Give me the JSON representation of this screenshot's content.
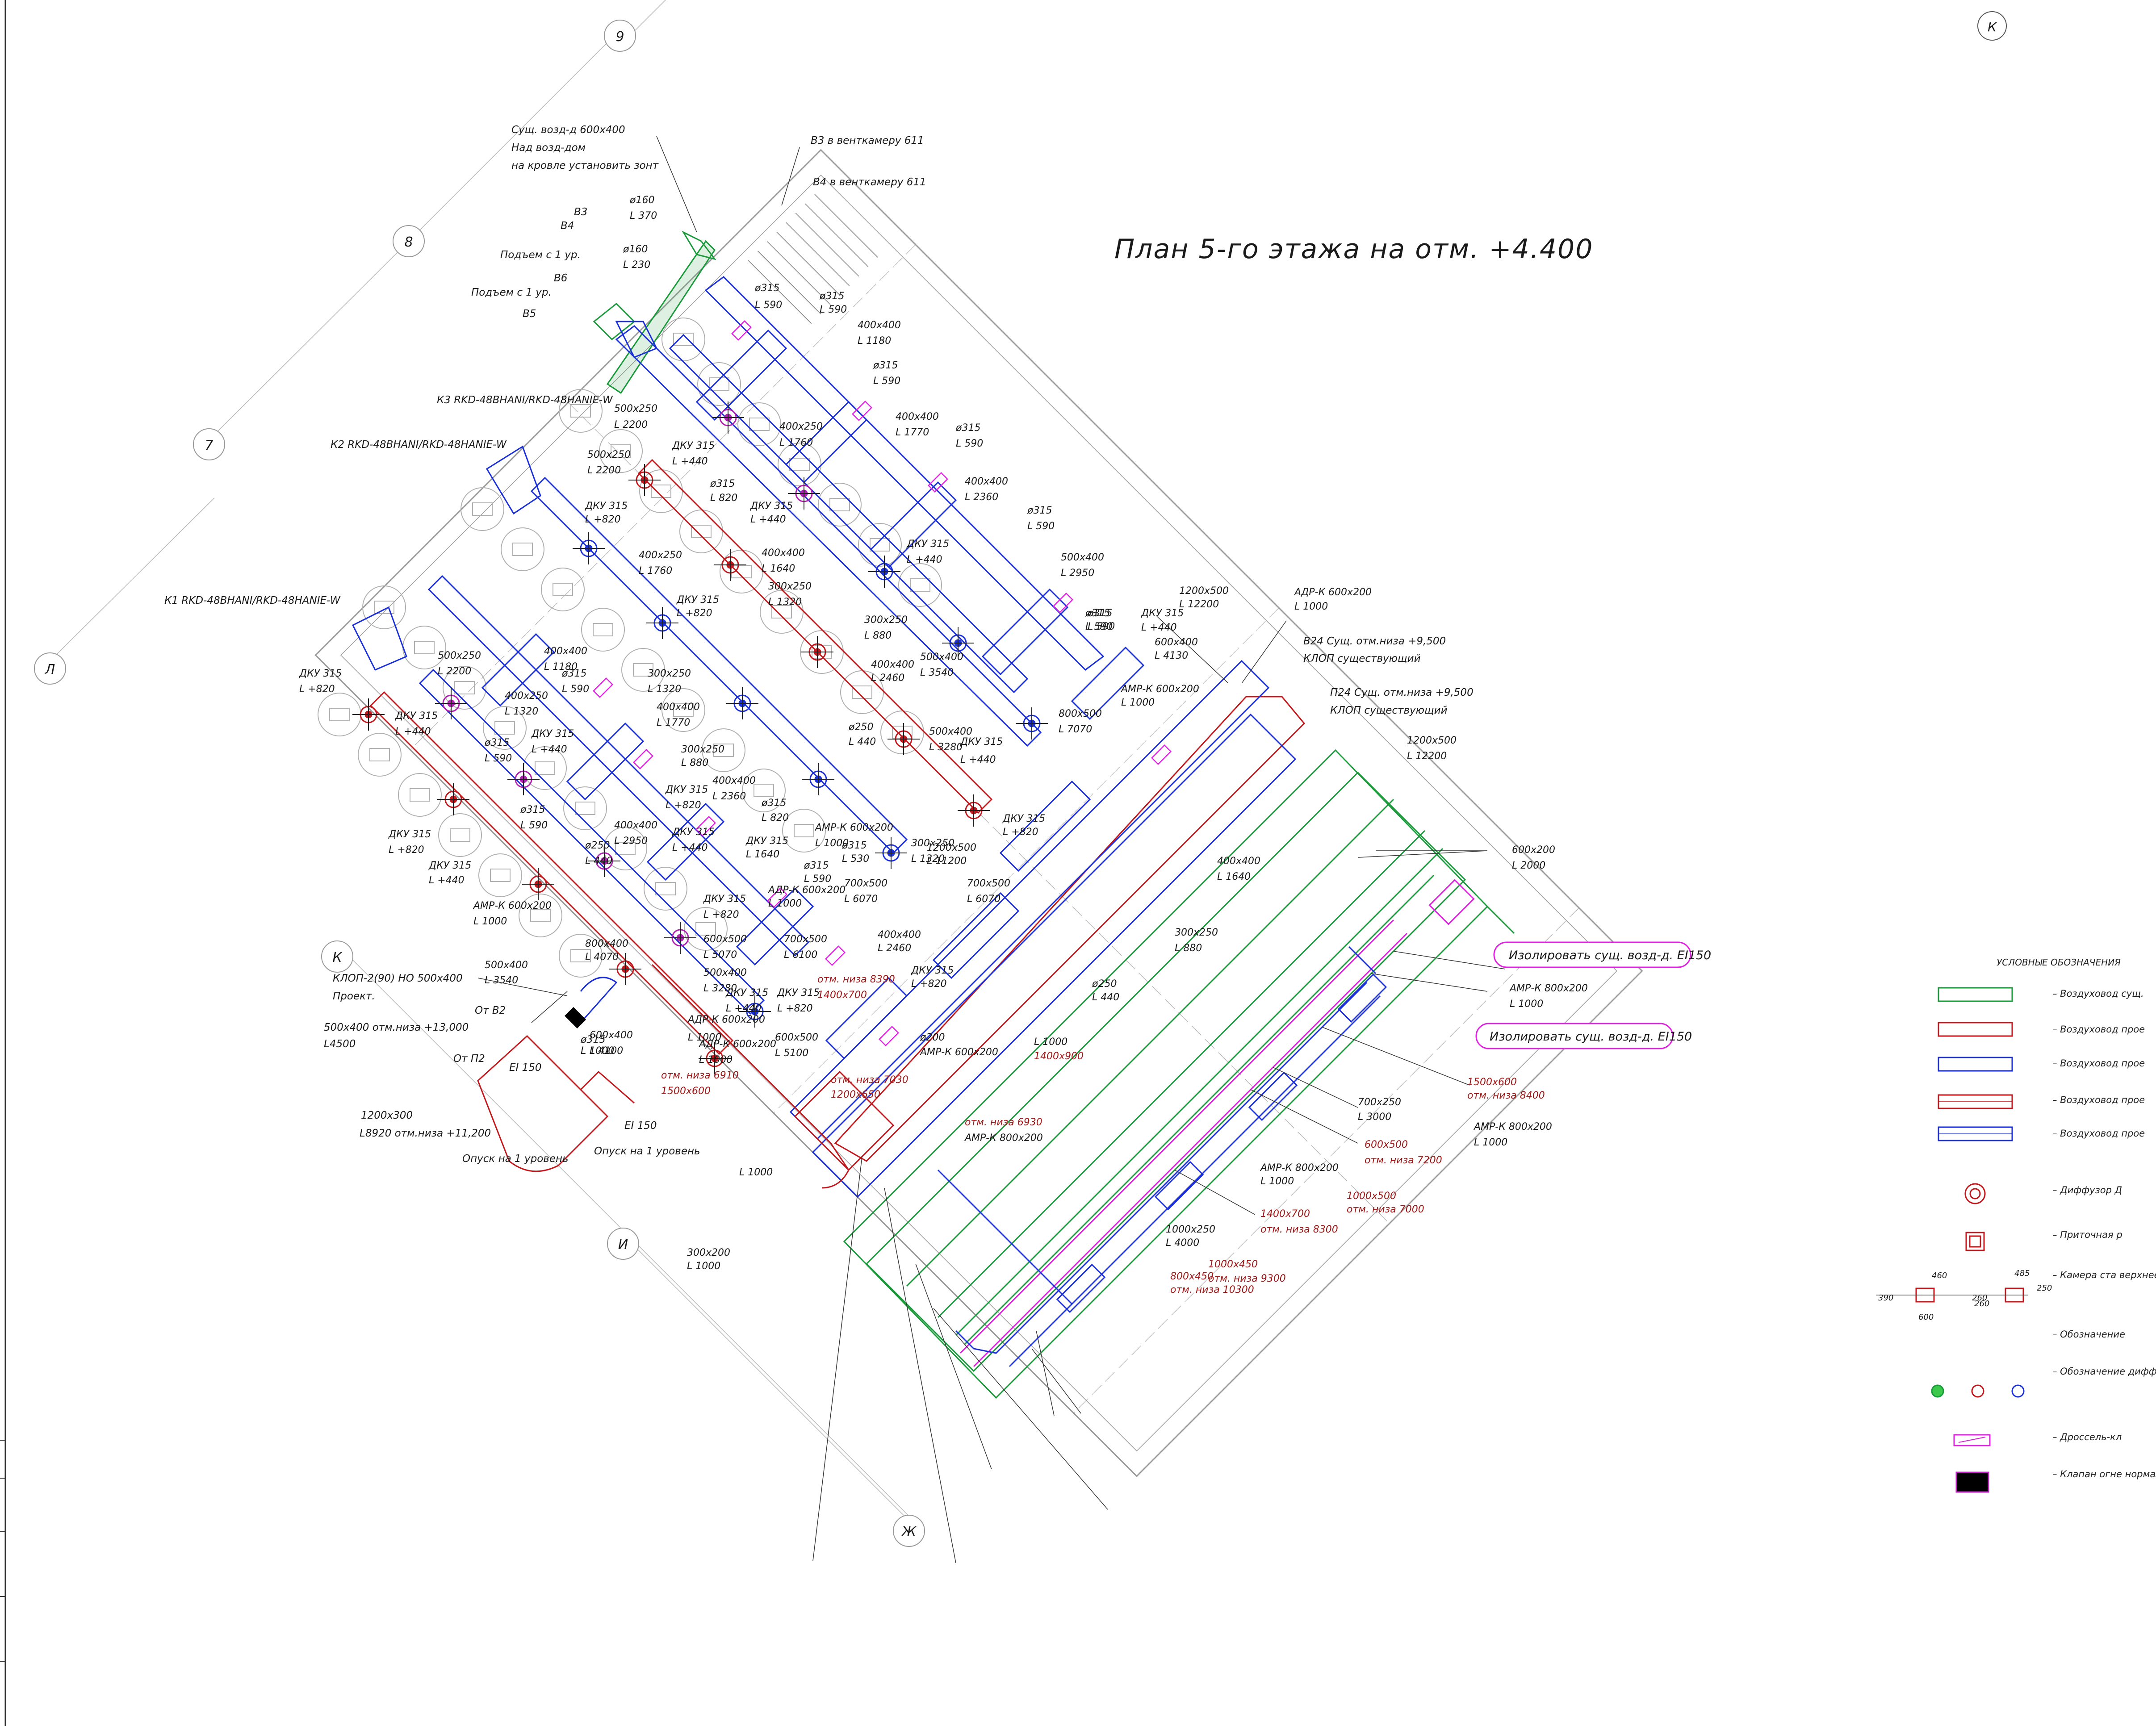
{
  "title": "План 5-го этажа на отм. +4.400",
  "axes": [
    "9",
    "8",
    "7",
    "Л",
    "К",
    "И",
    "Ж",
    "К"
  ],
  "notes": {
    "exhaust_top": [
      "Сущ. возд-д 600х400",
      "Над возд-дом",
      "на кровле установить зонт"
    ],
    "v3": "В3 в венткамеру 611",
    "v4": "В4 в венткамеру 611",
    "b3": "В3",
    "b4": "В4",
    "b5": "В5",
    "b6": "В6",
    "rise1": "Подъем с 1 ур.",
    "rise2": "Подъем с 1 ур.",
    "k3": "К3 RKD-48BHANI/RKD-48HANIE-W",
    "k2": "К2 RKD-48BHANI/RKD-48HANIE-W",
    "k1": "К1 RKD-48BHANI/RKD-48HANIE-W",
    "v24": "В24 Сущ. отм.низа +9,500",
    "v24b": "КЛОП существующий",
    "p24": "П24 Сущ. отм.низа +9,500",
    "p24b": "КЛОП существующий",
    "klop": "КЛОП-2(90) НО 500х400",
    "klop2": "Проект.",
    "ot_v2": "От В2",
    "ot_p2": "От П2",
    "d500": "500х400 отм.низа +13,000",
    "d500b": "L4500",
    "d1200": "1200х300",
    "d1200b": "L8920 отм.низа +11,200",
    "down1": "Опуск на 1 уровень",
    "down2": "Опуск на 1 уровень",
    "ei1": "EI 150",
    "ei2": "EI 150",
    "iso1": "Изолировать сущ. возд-д. EI150",
    "iso2": "Изолировать сущ. возд-д. EI150"
  },
  "dims": [
    "ø160",
    "L 370",
    "ø160",
    "L 230",
    "ø315",
    "L 590",
    "ø315",
    "L 590",
    "400х400",
    "L 1180",
    "ø315",
    "L 590",
    "500х250",
    "L 2200",
    "400х250",
    "L 1760",
    "400х400",
    "L 1770",
    "ø315",
    "L 590",
    "ДКУ 315",
    "L +440",
    "500х250",
    "L 2200",
    "ø315",
    "L 820",
    "400х400",
    "L 2360",
    "ø315",
    "L 590",
    "ДКУ 315",
    "L +820",
    "ДКУ 315",
    "L +440",
    "400х400",
    "L 1640",
    "300х250",
    "L 1320",
    "500х400",
    "L 2950",
    "ø315",
    "L 590",
    "ДКУ 315",
    "L +440",
    "400х250",
    "L 1760",
    "ДКУ 315",
    "L +820",
    "300х250",
    "L 880",
    "1200х500",
    "L 12200",
    "АДР-К 600х200",
    "L 1000",
    "ø315",
    "L 590",
    "ДКУ 315",
    "L +440",
    "400х400",
    "L 2460",
    "600х400",
    "L 4130",
    "500х400",
    "L 3540",
    "АМР-К 600х200",
    "L 1000",
    "800х500",
    "L 7070",
    "1200х500",
    "L 12200",
    "ДКУ 315",
    "L +820",
    "500х250",
    "L 2200",
    "ДКУ 315",
    "L +440",
    "400х400",
    "L 1180",
    "ø315",
    "L 590",
    "300х250",
    "L 1320",
    "400х400",
    "L 1770",
    "400х250",
    "L 1320",
    "ø315",
    "L 590",
    "ДКУ 315",
    "L +440",
    "300х250",
    "L 880",
    "400х400",
    "L 2360",
    "500х400",
    "L 3280",
    "ø250",
    "L 440",
    "ДКУ 315",
    "L +440",
    "ДКУ 315",
    "L +820",
    "ø315",
    "L 820",
    "ДКУ 315",
    "L +820",
    "ø315",
    "L 590",
    "400х400",
    "L 2950",
    "ø250",
    "L 440",
    "АМР-К 600х200",
    "L 1000",
    "ДКУ 315",
    "L +820",
    "1200х500",
    "L 11200",
    "300х250",
    "L 1320",
    "400х400",
    "L 1640",
    "ДКУ 315",
    "L 1640",
    "ø315",
    "L 590",
    "ДКУ 315",
    "L +440",
    "ø315",
    "L 530",
    "700х500",
    "L 6070",
    "700х500",
    "L 6070",
    "АДР-К 600х200",
    "L 1000",
    "ДКУ 315",
    "L +820",
    "300х250",
    "L 880",
    "ДКУ 315",
    "L +440",
    "АМР-К 600х200",
    "L 1000",
    "600х500",
    "L 5070",
    "700х500",
    "L 6100",
    "400х400",
    "L 2460",
    "ДКУ 315",
    "L +820",
    "ø250",
    "L 440",
    "500х400",
    "L 3540",
    "800х400",
    "L 4070",
    "500х400",
    "L 3280",
    "ДКУ 315",
    "L +440",
    "600х400",
    "L 4100",
    "ø315",
    "L 1000",
    "АДР-К 600х200",
    "L 1000",
    "АДР-К 600х200",
    "L 1000",
    "ДКУ 315",
    "L +820",
    "600х500",
    "L 5100",
    "ø200",
    "АМР-К 600х200",
    "L 1000",
    "1400х900",
    "отм. низа 7030",
    "1200х650",
    "отм. низа 8390",
    "1400х700",
    "отм. низа 6910",
    "1500х600",
    "отм. низа 6930",
    "АМР-К 800х200",
    "L 1000",
    "300х200",
    "L 1000",
    "600х200",
    "L 2000",
    "АМР-К 800х200",
    "L 1000",
    "1500х600",
    "отм. низа 8400",
    "700х250",
    "L 3000",
    "АМР-К 800х200",
    "L 1000",
    "600х500",
    "отм. низа 7200",
    "АМР-К 800х200",
    "L 1000",
    "1000х500",
    "отм. низа 7000",
    "1400х700",
    "отм. низа 8300",
    "1000х250",
    "L 4000",
    "1000х450",
    "отм. низа 9300",
    "800х450",
    "отм. низа 10300"
  ],
  "legend": {
    "title": "УСЛОВНЫЕ ОБОЗНАЧЕНИЯ",
    "items": [
      {
        "text": "–   Воздуховод сущ.",
        "color": "#1a9a3a"
      },
      {
        "text": "–   Воздуховод прое",
        "color": "#c0181c"
      },
      {
        "text": "–   Воздуховод прое",
        "color": "#1a2fd6"
      },
      {
        "text": "–   Воздуховод прое",
        "color": "#c0181c"
      },
      {
        "text": "–   Воздуховод прое",
        "color": "#1a2fd6"
      },
      {
        "text": "–   Диффузор Д",
        "color": "#c0181c"
      },
      {
        "text": "–   Приточная р",
        "color": "#c0181c"
      },
      {
        "text": "–   Камера ста верхнее и б",
        "color": "#c0181c"
      },
      {
        "text": "–   Обозначение",
        "color": "#222"
      },
      {
        "text": "–   Обозначение диффузора Д",
        "color": "#222"
      },
      {
        "text": "–   Дроссель-кл",
        "color": "#e020e0"
      },
      {
        "text": "–   Клапан огне нормально о",
        "color": "#000"
      }
    ],
    "cam_dims": [
      "460",
      "485",
      "250",
      "390",
      "260",
      "260",
      "600"
    ]
  },
  "colors": {
    "existing": "#1a9a3a",
    "supply": "#c0181c",
    "exhaust": "#1a2fd6",
    "grey": "#8a8a8a",
    "damper": "#e020e0",
    "note": "#a01818",
    "note_cloud": "#e020e0"
  }
}
